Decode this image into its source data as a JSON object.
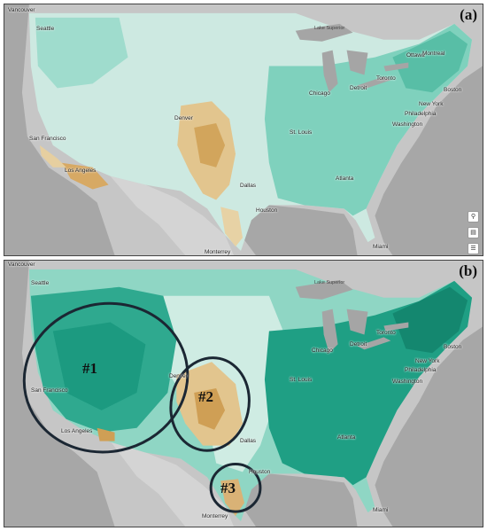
{
  "panels": {
    "a": {
      "label": "(a)",
      "cities": {
        "vancouver": "Vancouver",
        "seattle": "Seattle",
        "san_francisco": "San Francisco",
        "los_angeles": "Los Angeles",
        "denver": "Denver",
        "dallas": "Dallas",
        "houston": "Houston",
        "monterrey": "Monterrey",
        "st_louis": "St. Louis",
        "chicago": "Chicago",
        "detroit": "Detroit",
        "toronto": "Toronto",
        "ottawa": "Ottawa",
        "montreal": "Montreal",
        "boston": "Boston",
        "new_york": "New York",
        "philadelphia": "Philadelphia",
        "washington": "Washington",
        "atlanta": "Atlanta",
        "miami": "Miami",
        "lake_superior": "Lake Superior"
      },
      "controls": [
        "search-icon",
        "layers-icon",
        "legend-icon"
      ]
    },
    "b": {
      "label": "(b)",
      "cities": {
        "vancouver": "Vancouver",
        "seattle": "Seattle",
        "san_francisco": "San Francisco",
        "los_angeles": "Los Angeles",
        "denver": "Denver",
        "dallas": "Dallas",
        "houston": "Houston",
        "monterrey": "Monterrey",
        "st_louis": "St. Louis",
        "chicago": "Chicago",
        "detroit": "Detroit",
        "toronto": "Toronto",
        "boston": "Boston",
        "new_york": "New York",
        "philadelphia": "Philadelphia",
        "washington": "Washington",
        "atlanta": "Atlanta",
        "miami": "Miami",
        "lake_superior": "Lake Superior"
      },
      "regions": [
        "#1",
        "#2",
        "#3"
      ]
    }
  },
  "colors": {
    "water": "#b9b9b9",
    "land_light": "#dff2ec",
    "teal_light": "#9fdccd",
    "teal_mid": "#5cc2ab",
    "teal_dark": "#1c9a80",
    "tan_light": "#ead7b0",
    "tan_mid": "#d8b372",
    "tan_dark": "#c99445",
    "lake": "#a9a9a9",
    "circle": "#1b2733"
  }
}
